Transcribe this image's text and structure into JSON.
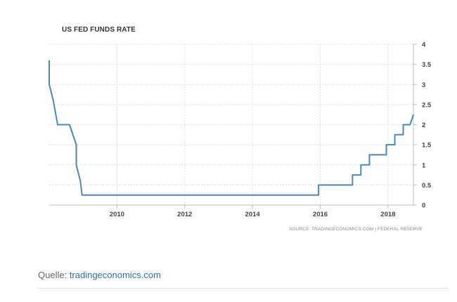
{
  "chart_data": {
    "type": "line",
    "title": "US FED FUNDS RATE",
    "source": "SOURCE: TRADINGECONOMICS.COM | FEDERAL RESERVE",
    "xlabel": "",
    "ylabel": "",
    "xlim": [
      2008.0,
      2018.75
    ],
    "ylim": [
      0,
      4
    ],
    "x_ticks": [
      2010,
      2012,
      2014,
      2016,
      2018
    ],
    "x_tick_labels": [
      "2010",
      "2012",
      "2014",
      "2016",
      "2018"
    ],
    "y_ticks": [
      0,
      0.5,
      1,
      1.5,
      2,
      2.5,
      3,
      3.5,
      4
    ],
    "y_tick_labels": [
      "0",
      "0.5",
      "1",
      "1.5",
      "2",
      "2.5",
      "3",
      "3.5",
      "4"
    ],
    "y_axis_side": "right",
    "grid": true,
    "line_color": "#4a88b8",
    "series": [
      {
        "values": [
          [
            2008.0,
            3.6
          ],
          [
            2008.0,
            3.0
          ],
          [
            2008.12,
            2.6
          ],
          [
            2008.25,
            2.0
          ],
          [
            2008.6,
            2.0
          ],
          [
            2008.8,
            1.5
          ],
          [
            2008.8,
            1.0
          ],
          [
            2008.92,
            0.6
          ],
          [
            2008.97,
            0.25
          ],
          [
            2015.95,
            0.25
          ],
          [
            2015.95,
            0.5
          ],
          [
            2016.95,
            0.5
          ],
          [
            2016.95,
            0.75
          ],
          [
            2017.2,
            0.75
          ],
          [
            2017.2,
            1.0
          ],
          [
            2017.45,
            1.0
          ],
          [
            2017.45,
            1.25
          ],
          [
            2017.95,
            1.25
          ],
          [
            2017.95,
            1.5
          ],
          [
            2018.2,
            1.5
          ],
          [
            2018.2,
            1.75
          ],
          [
            2018.45,
            1.75
          ],
          [
            2018.45,
            2.0
          ],
          [
            2018.65,
            2.0
          ],
          [
            2018.75,
            2.25
          ]
        ]
      }
    ]
  },
  "caption": {
    "prefix": "Quelle: ",
    "link_text": "tradingeconomics.com"
  }
}
